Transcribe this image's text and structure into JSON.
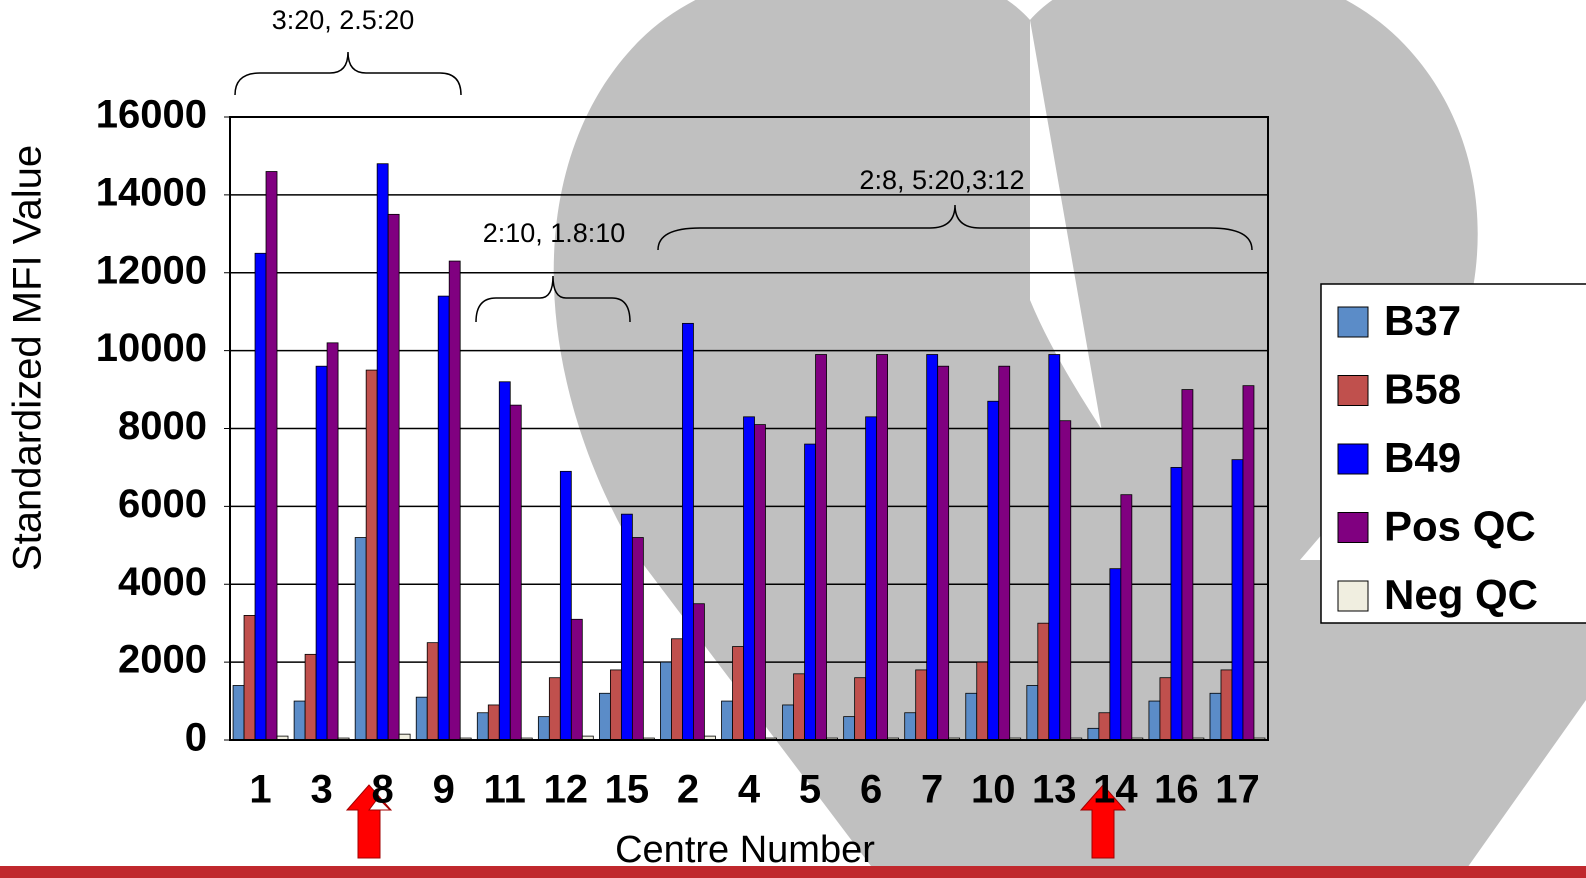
{
  "chart_data": {
    "type": "bar",
    "ylabel": "Standardized MFI Value",
    "xlabel": "Centre Number",
    "annotations": [
      "3:20, 2.5:20",
      "2:10, 1.8:10",
      "2:8, 5:20,3:12"
    ],
    "categories": [
      "1",
      "3",
      "8",
      "9",
      "11",
      "12",
      "15",
      "2",
      "4",
      "5",
      "6",
      "7",
      "10",
      "13",
      "14",
      "16",
      "17"
    ],
    "series": [
      {
        "name": "B37",
        "color": "#5b8cc8",
        "values": [
          1400,
          1000,
          5200,
          1100,
          700,
          600,
          1200,
          2000,
          1000,
          900,
          600,
          700,
          1200,
          1400,
          300,
          1000,
          1200
        ]
      },
      {
        "name": "B58",
        "color": "#c0504d",
        "values": [
          3200,
          2200,
          9500,
          2500,
          900,
          1600,
          1800,
          2600,
          2400,
          1700,
          1600,
          1800,
          2000,
          3000,
          700,
          1600,
          1800
        ]
      },
      {
        "name": "B49",
        "color": "#0000ff",
        "values": [
          12500,
          9600,
          14800,
          11400,
          9200,
          6900,
          5800,
          10700,
          8300,
          7600,
          8300,
          9900,
          8700,
          9900,
          4400,
          7000,
          7200
        ]
      },
      {
        "name": "Pos QC",
        "color": "#800080",
        "values": [
          14600,
          10200,
          13500,
          12300,
          8600,
          3100,
          5200,
          3500,
          8100,
          9900,
          9900,
          9600,
          9600,
          8200,
          6300,
          9000,
          9100
        ]
      },
      {
        "name": "Neg QC",
        "color": "#f0eee0",
        "values": [
          100,
          50,
          150,
          50,
          50,
          100,
          50,
          100,
          50,
          50,
          50,
          50,
          50,
          50,
          50,
          50,
          50
        ]
      }
    ],
    "ylim": [
      0,
      16000
    ],
    "yticks": [
      0,
      2000,
      4000,
      6000,
      8000,
      10000,
      12000,
      14000,
      16000
    ],
    "grid": true
  }
}
